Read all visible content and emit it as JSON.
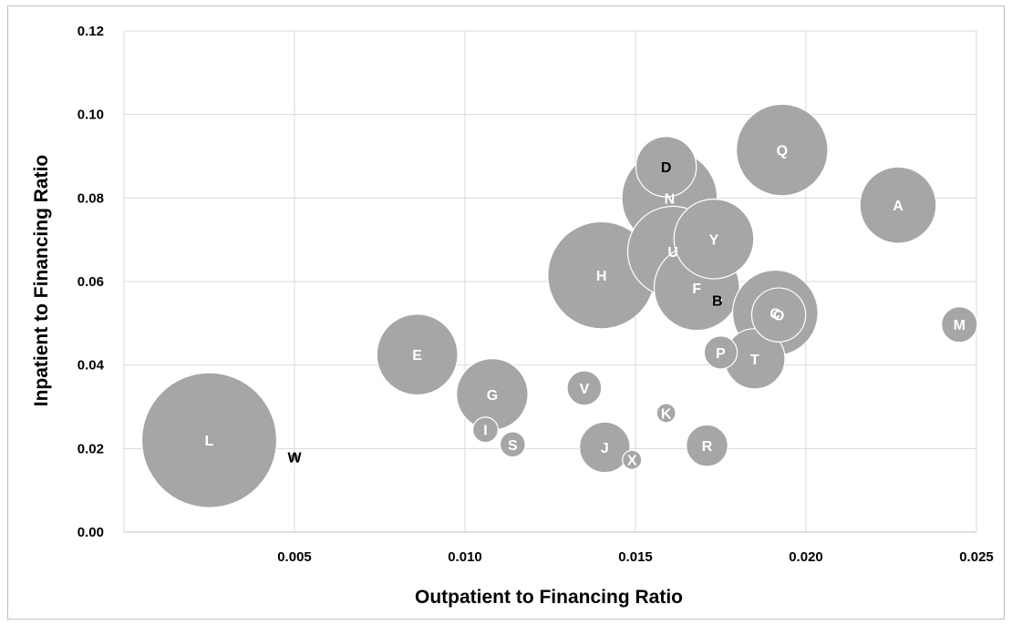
{
  "chart_data": {
    "type": "scatter",
    "variant": "bubble",
    "title": "",
    "xlabel": "Outpatient to Financing Ratio",
    "ylabel": "Inpatient to Financing Ratio",
    "xlim": [
      0.0,
      0.025
    ],
    "ylim": [
      0.0,
      0.12
    ],
    "x_ticks": [
      "0.005",
      "0.010",
      "0.015",
      "0.020",
      "0.025"
    ],
    "y_ticks": [
      "0.00",
      "0.02",
      "0.04",
      "0.06",
      "0.08",
      "0.10",
      "0.12"
    ],
    "grid": true,
    "legend": "none",
    "colors": {
      "bubble": "#a6a6a6",
      "bubble_stroke": "#ffffff",
      "label_inside": "#ffffff",
      "label_outside": "#000000",
      "grid": "#d9d9d9"
    },
    "points": [
      {
        "label": "L",
        "x": 0.0025,
        "y": 0.022,
        "size": 100,
        "label_color": "#ffffff"
      },
      {
        "label": "W",
        "x": 0.005,
        "y": 0.018,
        "size": 0.4,
        "label_color": "#000000"
      },
      {
        "label": "E",
        "x": 0.0086,
        "y": 0.0425,
        "size": 36,
        "label_color": "#ffffff"
      },
      {
        "label": "G",
        "x": 0.0108,
        "y": 0.033,
        "size": 28,
        "label_color": "#ffffff"
      },
      {
        "label": "I",
        "x": 0.0106,
        "y": 0.0245,
        "size": 3.5,
        "label_color": "#ffffff"
      },
      {
        "label": "S",
        "x": 0.0114,
        "y": 0.021,
        "size": 3.5,
        "label_color": "#ffffff"
      },
      {
        "label": "V",
        "x": 0.0135,
        "y": 0.0345,
        "size": 6.5,
        "label_color": "#ffffff"
      },
      {
        "label": "J",
        "x": 0.0141,
        "y": 0.0203,
        "size": 14,
        "label_color": "#ffffff"
      },
      {
        "label": "X",
        "x": 0.0149,
        "y": 0.0173,
        "size": 2,
        "label_color": "#ffffff"
      },
      {
        "label": "K",
        "x": 0.0159,
        "y": 0.0285,
        "size": 2,
        "label_color": "#ffffff"
      },
      {
        "label": "R",
        "x": 0.0171,
        "y": 0.0207,
        "size": 9.5,
        "label_color": "#ffffff"
      },
      {
        "label": "H",
        "x": 0.014,
        "y": 0.0615,
        "size": 63,
        "label_color": "#ffffff"
      },
      {
        "label": "D",
        "x": 0.0159,
        "y": 0.0875,
        "size": 20,
        "label_color": "#000000"
      },
      {
        "label": "N",
        "x": 0.016,
        "y": 0.08,
        "size": 50,
        "label_color": "#ffffff"
      },
      {
        "label": "F",
        "x": 0.0168,
        "y": 0.0585,
        "size": 40,
        "label_color": "#ffffff"
      },
      {
        "label": "U",
        "x": 0.0161,
        "y": 0.0672,
        "size": 45,
        "label_color": "#ffffff"
      },
      {
        "label": "Y",
        "x": 0.0173,
        "y": 0.0702,
        "size": 35,
        "label_color": "#ffffff"
      },
      {
        "label": "B",
        "x": 0.0174,
        "y": 0.0555,
        "size": 0.4,
        "label_color": "#000000"
      },
      {
        "label": "Q",
        "x": 0.0193,
        "y": 0.0915,
        "size": 46,
        "label_color": "#ffffff"
      },
      {
        "label": "A",
        "x": 0.0227,
        "y": 0.0783,
        "size": 32,
        "label_color": "#ffffff"
      },
      {
        "label": "C",
        "x": 0.0191,
        "y": 0.0525,
        "size": 40,
        "label_color": "#ffffff"
      },
      {
        "label": "O",
        "x": 0.0192,
        "y": 0.052,
        "size": 16,
        "label_color": "#ffffff"
      },
      {
        "label": "T",
        "x": 0.0185,
        "y": 0.0415,
        "size": 20,
        "label_color": "#ffffff"
      },
      {
        "label": "P",
        "x": 0.0175,
        "y": 0.043,
        "size": 6,
        "label_color": "#ffffff"
      },
      {
        "label": "M",
        "x": 0.0245,
        "y": 0.0497,
        "size": 7,
        "label_color": "#ffffff"
      }
    ]
  }
}
